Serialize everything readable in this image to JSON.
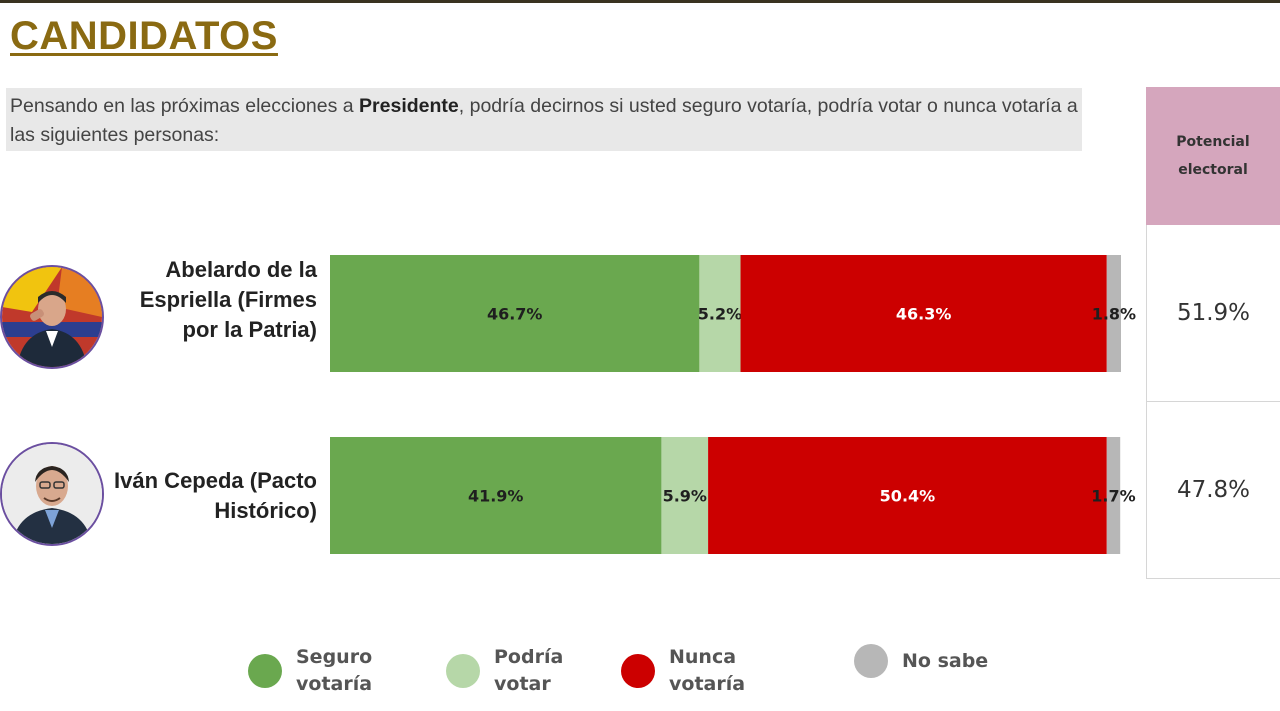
{
  "page": {
    "title": "CANDIDATOS",
    "question_part1": "Pensando en las próximas elecciones a ",
    "question_bold": "Presidente",
    "question_part2": ", podría decirnos si usted seguro votaría, podría votar o nunca votaría a las siguientes personas:",
    "potential_header": "Potencial electoral"
  },
  "candidates": [
    {
      "name": "Abelardo de la Espriella (Firmes por la Patria)",
      "potential": "51.9%"
    },
    {
      "name": "Iván Cepeda (Pacto Histórico)",
      "potential": "47.8%"
    }
  ],
  "chart_data": {
    "type": "bar",
    "orientation": "horizontal",
    "stacked": true,
    "categories": [
      "Abelardo de la Espriella (Firmes por la Patria)",
      "Iván Cepeda (Pacto Histórico)"
    ],
    "series": [
      {
        "name": "Seguro votaría",
        "values": [
          46.7,
          41.9
        ],
        "labels": [
          "46.7%",
          "41.9%"
        ],
        "color": "#6aa84f"
      },
      {
        "name": "Podría votar",
        "values": [
          5.2,
          5.9
        ],
        "labels": [
          "5.2%",
          "5.9%"
        ],
        "color": "#b6d7a8"
      },
      {
        "name": "Nunca votaría",
        "values": [
          46.3,
          50.4
        ],
        "labels": [
          "46.3%",
          "50.4%"
        ],
        "color": "#cc0000"
      },
      {
        "name": "No sabe",
        "values": [
          1.8,
          1.7
        ],
        "labels": [
          "1.8%",
          "1.7%"
        ],
        "color": "#b7b7b7"
      }
    ],
    "xlim": [
      0,
      100
    ],
    "legend_position": "bottom"
  }
}
